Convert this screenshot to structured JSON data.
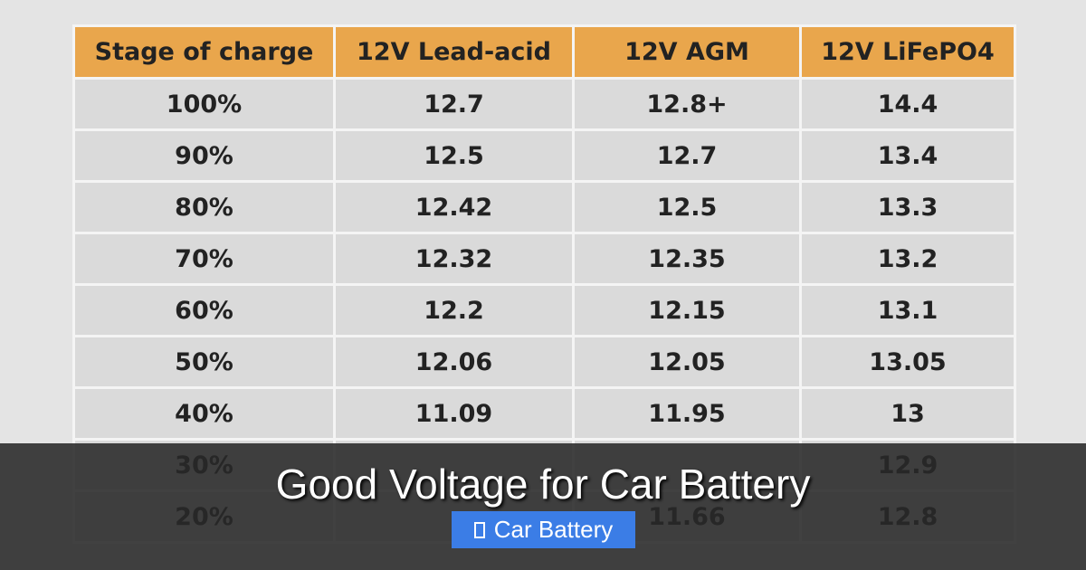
{
  "table": {
    "columns": [
      "Stage of charge",
      "12V Lead-acid",
      "12V AGM",
      "12V LiFePO4"
    ],
    "rows": [
      [
        "100%",
        "12.7",
        "12.8+",
        "14.4"
      ],
      [
        "90%",
        "12.5",
        "12.7",
        "13.4"
      ],
      [
        "80%",
        "12.42",
        "12.5",
        "13.3"
      ],
      [
        "70%",
        "12.32",
        "12.35",
        "13.2"
      ],
      [
        "60%",
        "12.2",
        "12.15",
        "13.1"
      ],
      [
        "50%",
        "12.06",
        "12.05",
        "13.05"
      ],
      [
        "40%",
        "11.09",
        "11.95",
        "13"
      ],
      [
        "30%",
        null,
        null,
        "12.9"
      ],
      [
        "20%",
        null,
        "11.66",
        "12.8"
      ]
    ]
  },
  "overlay": {
    "title": "Good Voltage for Car Battery",
    "tag": "Car Battery"
  }
}
